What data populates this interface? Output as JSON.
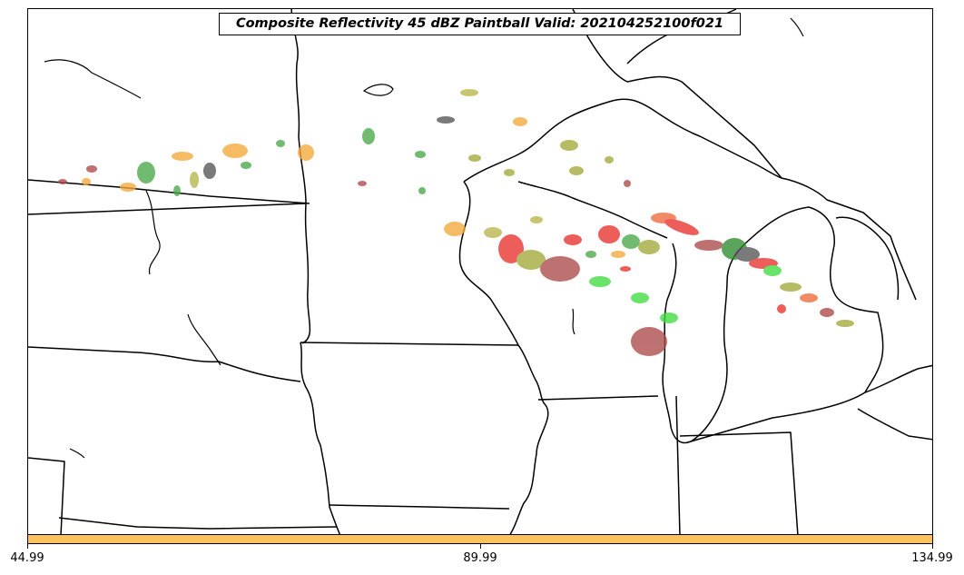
{
  "title": "Composite Reflectivity 45 dBZ Paintball Valid: 202104252100f021",
  "colorbar": {
    "color": "#ffc15c",
    "ticks": [
      "44.99",
      "89.99",
      "134.99"
    ]
  },
  "member_colors": [
    "#f4a83a",
    "#e8302c",
    "#4aa84a",
    "#a2a839",
    "#555555",
    "#ad4a4a",
    "#3fdc3f",
    "#b8b64a",
    "#ee6a3a",
    "#2e8b2e"
  ]
}
